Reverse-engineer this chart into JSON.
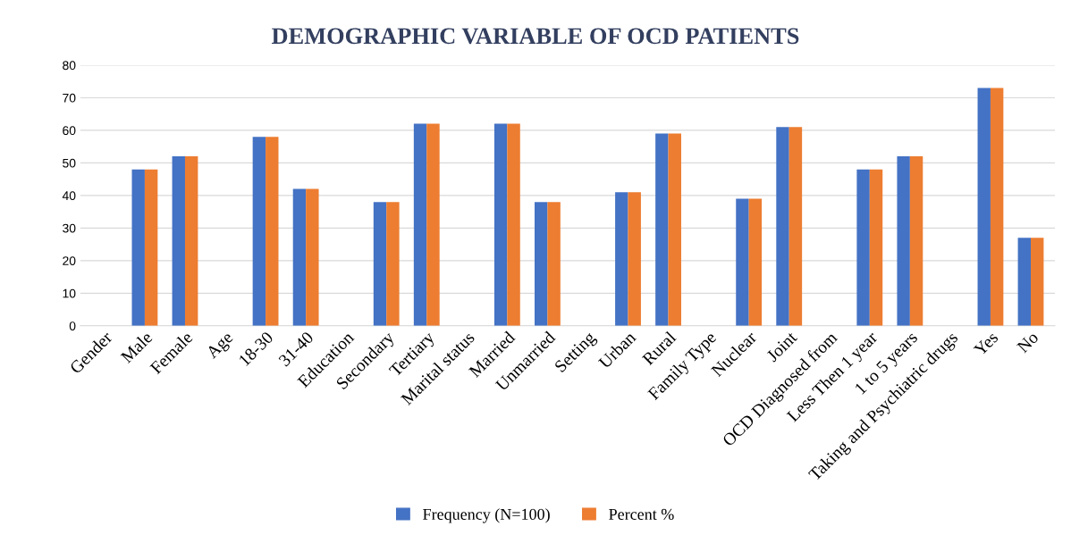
{
  "chart_data": {
    "type": "bar",
    "title": "DEMOGRAPHIC VARIABLE OF OCD PATIENTS",
    "categories": [
      "Gender",
      "Male",
      "Female",
      "Age",
      "18-30",
      "31-40",
      "Education",
      "Secondary",
      "Tertiary",
      "Marital status",
      "Married",
      "Unmarried",
      "Setting",
      "Urban",
      "Rural",
      "Family Type",
      "Nuclear",
      "Joint",
      "OCD Diagnosed from",
      "Less Then 1 year",
      "1 to 5 years",
      "Taking and Psychiatric drugs",
      "Yes",
      "No"
    ],
    "series": [
      {
        "name": "Frequency (N=100)",
        "color": "#4472c4",
        "values": [
          null,
          48,
          52,
          null,
          58,
          42,
          null,
          38,
          62,
          null,
          62,
          38,
          null,
          41,
          59,
          null,
          39,
          61,
          null,
          48,
          52,
          null,
          73,
          27
        ]
      },
      {
        "name": "Percent %",
        "color": "#ed7d31",
        "values": [
          null,
          48,
          52,
          null,
          58,
          42,
          null,
          38,
          62,
          null,
          62,
          38,
          null,
          41,
          59,
          null,
          39,
          61,
          null,
          48,
          52,
          null,
          73,
          27
        ]
      }
    ],
    "ylim": [
      0,
      80
    ],
    "yticks": [
      0,
      10,
      20,
      30,
      40,
      50,
      60,
      70,
      80
    ],
    "grid": "y",
    "legend": "bottom"
  }
}
